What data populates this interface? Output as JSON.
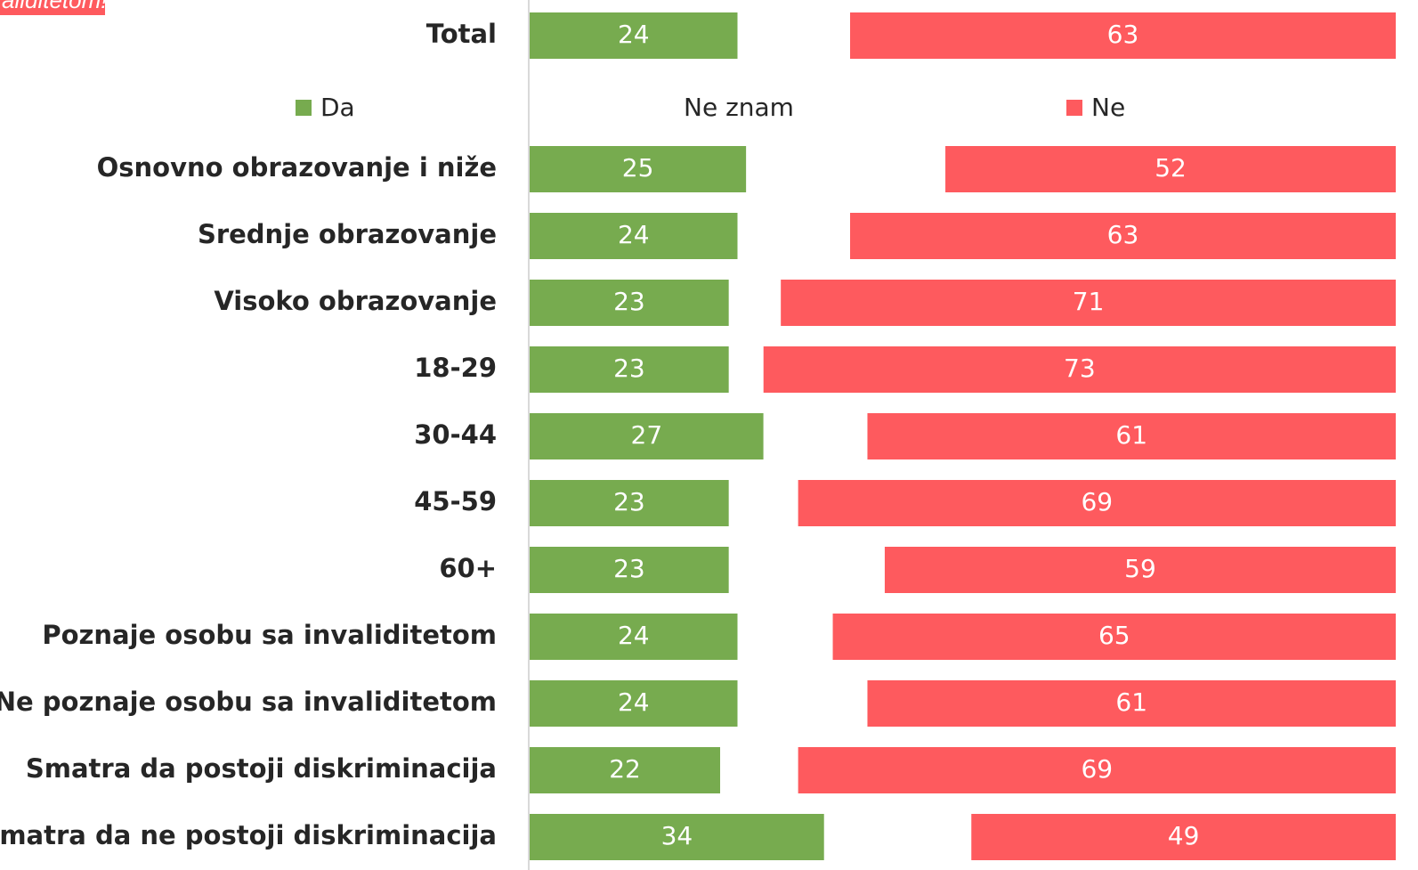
{
  "chart_data": {
    "type": "stacked_bar_horizontal",
    "title": "aliditetom!",
    "categories": [
      "Total",
      "Osnovno obrazovanje i niže",
      "Srednje obrazovanje",
      "Visoko obrazovanje",
      "18-29",
      "30-44",
      "45-59",
      "60+",
      "Poznaje osobu sa invaliditetom",
      "Ne poznaje osobu sa invaliditetom",
      "Smatra da postoji diskriminacija",
      "Smatra da ne postoji diskriminacija"
    ],
    "series": [
      {
        "name": "Da",
        "color": "#77ab4f",
        "show_labels": true,
        "values": [
          24,
          25,
          24,
          23,
          23,
          27,
          23,
          23,
          24,
          24,
          22,
          34
        ]
      },
      {
        "name": "Ne znam",
        "color": "#ffffff",
        "show_labels": false,
        "values": [
          13,
          23,
          13,
          6,
          4,
          12,
          8,
          18,
          11,
          15,
          9,
          17
        ]
      },
      {
        "name": "Ne",
        "color": "#fe5a5e",
        "show_labels": true,
        "values": [
          63,
          52,
          63,
          71,
          73,
          61,
          69,
          59,
          65,
          61,
          69,
          49
        ]
      }
    ],
    "xlim": [
      0,
      100
    ]
  }
}
